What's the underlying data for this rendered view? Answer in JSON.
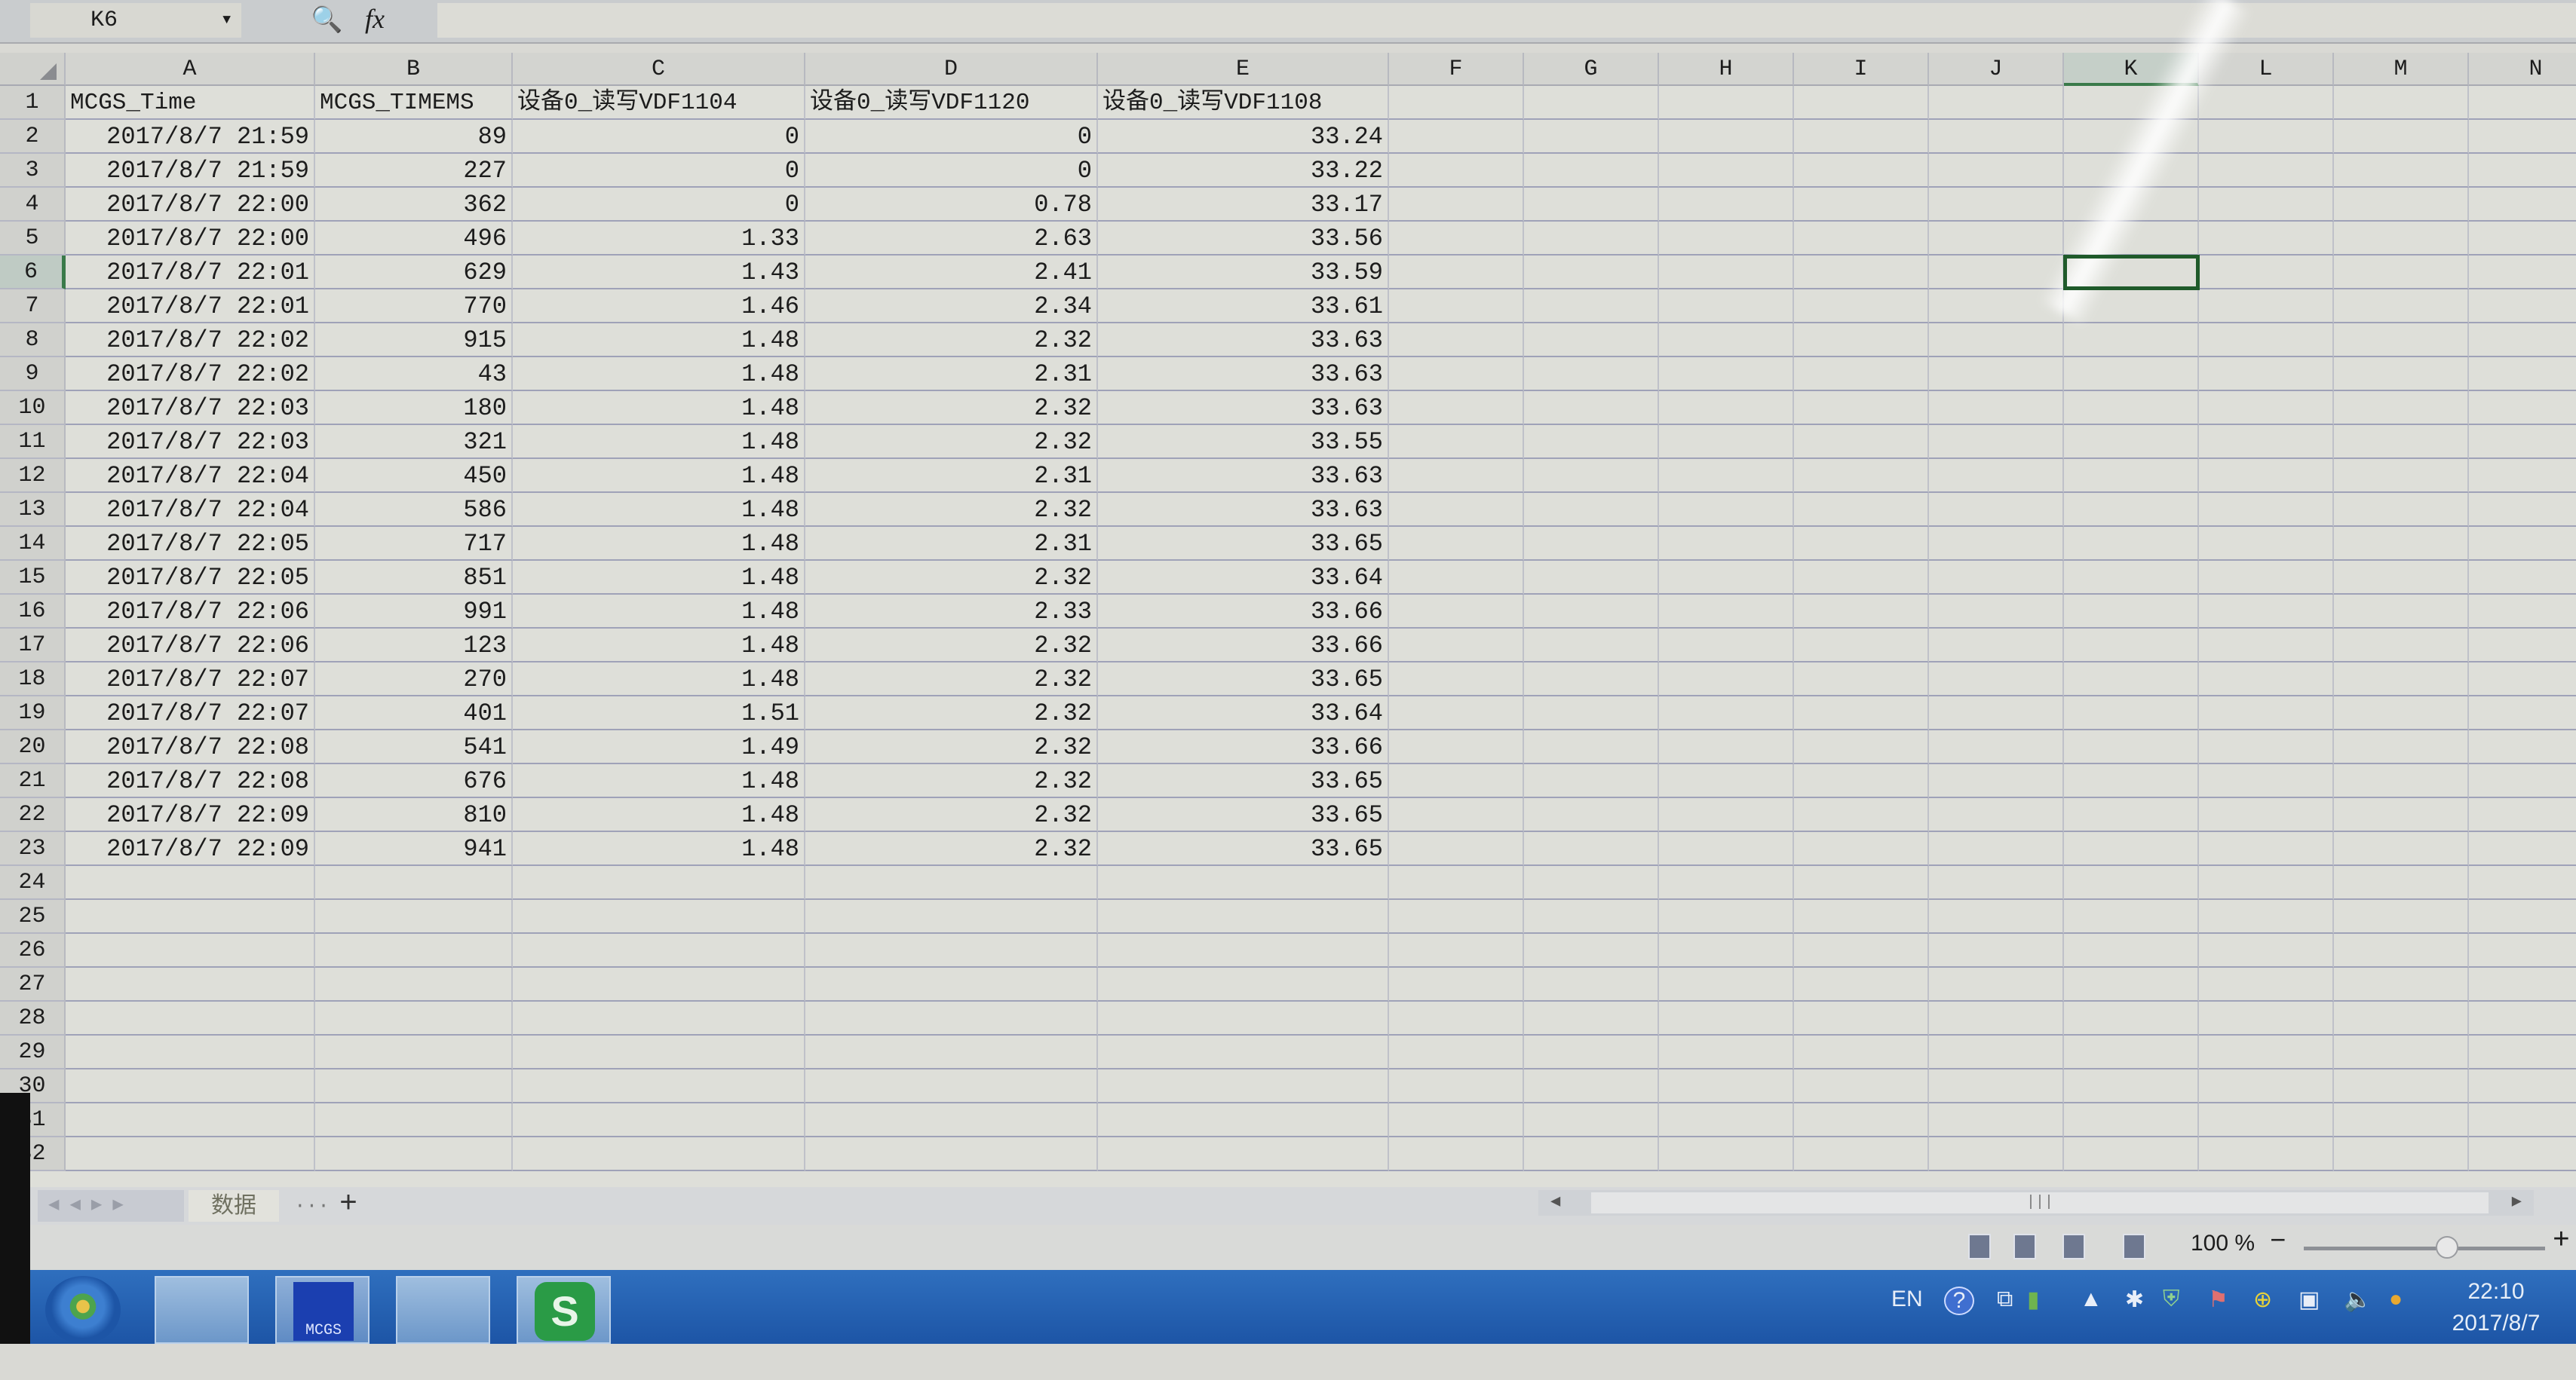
{
  "formula_bar": {
    "name_box": "K6",
    "zoom_icon": "magnifier-icon",
    "fx_label": "fx",
    "formula": ""
  },
  "columns": [
    "A",
    "B",
    "C",
    "D",
    "E",
    "F",
    "G",
    "H",
    "I",
    "J",
    "K",
    "L",
    "M",
    "N"
  ],
  "selected_cell": {
    "column": "K",
    "row": 6
  },
  "header_row": [
    "MCGS_Time",
    "MCGS_TIMEMS",
    "设备0_读写VDF1104",
    "设备0_读写VDF1120",
    "设备0_读写VDF1108"
  ],
  "data_rows": [
    [
      "2017/8/7 21:59",
      "89",
      "0",
      "0",
      "33.24"
    ],
    [
      "2017/8/7 21:59",
      "227",
      "0",
      "0",
      "33.22"
    ],
    [
      "2017/8/7 22:00",
      "362",
      "0",
      "0.78",
      "33.17"
    ],
    [
      "2017/8/7 22:00",
      "496",
      "1.33",
      "2.63",
      "33.56"
    ],
    [
      "2017/8/7 22:01",
      "629",
      "1.43",
      "2.41",
      "33.59"
    ],
    [
      "2017/8/7 22:01",
      "770",
      "1.46",
      "2.34",
      "33.61"
    ],
    [
      "2017/8/7 22:02",
      "915",
      "1.48",
      "2.32",
      "33.63"
    ],
    [
      "2017/8/7 22:02",
      "43",
      "1.48",
      "2.31",
      "33.63"
    ],
    [
      "2017/8/7 22:03",
      "180",
      "1.48",
      "2.32",
      "33.63"
    ],
    [
      "2017/8/7 22:03",
      "321",
      "1.48",
      "2.32",
      "33.55"
    ],
    [
      "2017/8/7 22:04",
      "450",
      "1.48",
      "2.31",
      "33.63"
    ],
    [
      "2017/8/7 22:04",
      "586",
      "1.48",
      "2.32",
      "33.63"
    ],
    [
      "2017/8/7 22:05",
      "717",
      "1.48",
      "2.31",
      "33.65"
    ],
    [
      "2017/8/7 22:05",
      "851",
      "1.48",
      "2.32",
      "33.64"
    ],
    [
      "2017/8/7 22:06",
      "991",
      "1.48",
      "2.33",
      "33.66"
    ],
    [
      "2017/8/7 22:06",
      "123",
      "1.48",
      "2.32",
      "33.66"
    ],
    [
      "2017/8/7 22:07",
      "270",
      "1.48",
      "2.32",
      "33.65"
    ],
    [
      "2017/8/7 22:07",
      "401",
      "1.51",
      "2.32",
      "33.64"
    ],
    [
      "2017/8/7 22:08",
      "541",
      "1.49",
      "2.32",
      "33.66"
    ],
    [
      "2017/8/7 22:08",
      "676",
      "1.48",
      "2.32",
      "33.65"
    ],
    [
      "2017/8/7 22:09",
      "810",
      "1.48",
      "2.32",
      "33.65"
    ],
    [
      "2017/8/7 22:09",
      "941",
      "1.48",
      "2.32",
      "33.65"
    ]
  ],
  "visible_row_count": 32,
  "sheet_tabs": {
    "active": "数据",
    "more": "···",
    "add": "+"
  },
  "status_bar": {
    "zoom": "100 %",
    "zoom_minus": "−",
    "zoom_plus": "+",
    "zoom_level_percent": 100
  },
  "taskbar": {
    "apps": [
      "start-orb",
      "file-explorer",
      "MCGS",
      "device-manager",
      "WPS Spreadsheets"
    ],
    "mcgs_label": "MCGS",
    "tray": {
      "lang": "EN",
      "help": "?",
      "clock_time": "22:10",
      "clock_date": "2017/8/7"
    }
  },
  "colors": {
    "selection": "#1f5a2a",
    "taskbar": "#1d55a6",
    "grid_line": "#9fa2b8"
  }
}
